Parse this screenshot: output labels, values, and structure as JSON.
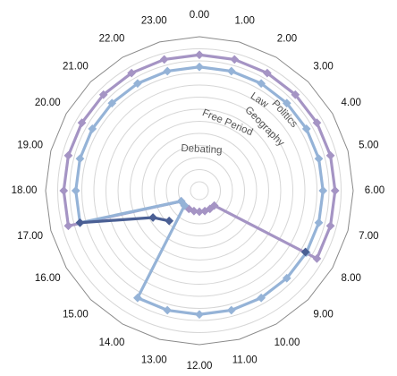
{
  "chart_data": {
    "type": "radar",
    "title": "",
    "categories": [
      "0.00",
      "1.00",
      "2.00",
      "3.00",
      "4.00",
      "5.00",
      "6.00",
      "7.00",
      "8.00",
      "9.00",
      "10.00",
      "11.00",
      "12.00",
      "13.00",
      "14.00",
      "15.00",
      "16.00",
      "17.00",
      "18.00",
      "19.00",
      "20.00",
      "21.00",
      "22.00",
      "23.00"
    ],
    "ring_labels": [
      "Debating",
      "Free Period",
      "Law",
      "Geography",
      "Politics"
    ],
    "ring_count": 12,
    "rmax": 12,
    "grid": true,
    "legend": "none",
    "series": [
      {
        "color": "#a594c4",
        "values": [
          10.5,
          10.5,
          10.5,
          10.5,
          10.5,
          10.5,
          10.5,
          10.5,
          10.5,
          1,
          1,
          1,
          1,
          1,
          1,
          1,
          1,
          10.5,
          10.5,
          10.5,
          10.5,
          10.5,
          10.5,
          10.5
        ]
      },
      {
        "color": "#95b3d7",
        "values": [
          9.5,
          9.5,
          9.5,
          9.5,
          9.5,
          9.5,
          9.5,
          9.5,
          9.5,
          9.5,
          9.5,
          9.5,
          9.5,
          9.5,
          9.5,
          1,
          1,
          9.5,
          9.5,
          9.5,
          9.5,
          9.5,
          9.5,
          9.5
        ]
      },
      {
        "color": "#4a5f94",
        "values": [
          null,
          null,
          null,
          null,
          null,
          null,
          null,
          null,
          9.4,
          null,
          null,
          null,
          null,
          null,
          null,
          2.8,
          3.7,
          9.5,
          null,
          null,
          null,
          null,
          null,
          null
        ]
      }
    ]
  }
}
